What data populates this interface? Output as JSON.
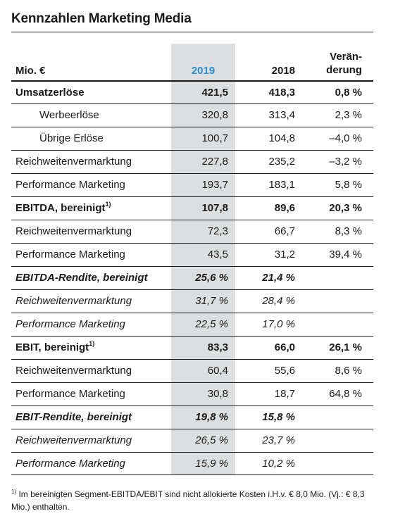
{
  "title": "Kennzahlen Marketing Media",
  "header": {
    "label": "Mio. €",
    "y2019": "2019",
    "y2018": "2018",
    "change_line1": "Verän-",
    "change_line2": "derung"
  },
  "rows": [
    {
      "label": "Umsatzerlöse",
      "v2019": "421,5",
      "v2018": "418,3",
      "change": "0,8 %",
      "style": "bold"
    },
    {
      "label": "Werbeerlöse",
      "v2019": "320,8",
      "v2018": "313,4",
      "change": "2,3 %",
      "style": "indent"
    },
    {
      "label": "Übrige Erlöse",
      "v2019": "100,7",
      "v2018": "104,8",
      "change": "–4,0 %",
      "style": "indent"
    },
    {
      "label": "Reichweitenvermarktung",
      "v2019": "227,8",
      "v2018": "235,2",
      "change": "–3,2 %",
      "style": ""
    },
    {
      "label": "Performance Marketing",
      "v2019": "193,7",
      "v2018": "183,1",
      "change": "5,8 %",
      "style": ""
    },
    {
      "label": "EBITDA, bereinigt",
      "sup": "1)",
      "v2019": "107,8",
      "v2018": "89,6",
      "change": "20,3 %",
      "style": "bold"
    },
    {
      "label": "Reichweitenvermarktung",
      "v2019": "72,3",
      "v2018": "66,7",
      "change": "8,3 %",
      "style": ""
    },
    {
      "label": "Performance Marketing",
      "v2019": "43,5",
      "v2018": "31,2",
      "change": "39,4 %",
      "style": ""
    },
    {
      "label": "EBITDA-Rendite, bereinigt",
      "v2019": "25,6 %",
      "v2018": "21,4 %",
      "change": "",
      "style": "bold ital"
    },
    {
      "label": "Reichweitenvermarktung",
      "v2019": "31,7 %",
      "v2018": "28,4 %",
      "change": "",
      "style": "ital"
    },
    {
      "label": "Performance Marketing",
      "v2019": "22,5 %",
      "v2018": "17,0 %",
      "change": "",
      "style": "ital"
    },
    {
      "label": "EBIT, bereinigt",
      "sup": "1)",
      "v2019": "83,3",
      "v2018": "66,0",
      "change": "26,1 %",
      "style": "bold"
    },
    {
      "label": "Reichweitenvermarktung",
      "v2019": "60,4",
      "v2018": "55,6",
      "change": "8,6 %",
      "style": ""
    },
    {
      "label": "Performance Marketing",
      "v2019": "30,8",
      "v2018": "18,7",
      "change": "64,8 %",
      "style": ""
    },
    {
      "label": "EBIT-Rendite, bereinigt",
      "v2019": "19,8 %",
      "v2018": "15,8 %",
      "change": "",
      "style": "bold ital"
    },
    {
      "label": "Reichweitenvermarktung",
      "v2019": "26,5 %",
      "v2018": "23,7 %",
      "change": "",
      "style": "ital"
    },
    {
      "label": "Performance Marketing",
      "v2019": "15,9 %",
      "v2018": "10,2 %",
      "change": "",
      "style": "ital"
    }
  ],
  "footnote": {
    "mark": "1)",
    "text": "Im bereinigten Segment-EBITDA/EBIT sind nicht allokierte Kosten i.H.v. € 8,0 Mio. (Vj.: € 8,3 Mio.) enthalten."
  }
}
